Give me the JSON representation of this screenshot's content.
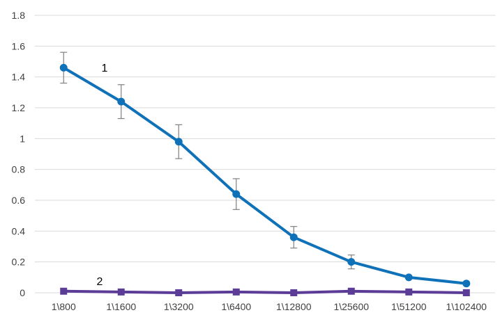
{
  "chart_data": {
    "type": "line",
    "title": "",
    "xlabel": "",
    "ylabel": "",
    "categories": [
      "1\\800",
      "1\\1600",
      "1\\3200",
      "1\\6400",
      "1\\12800",
      "1\\25600",
      "1\\51200",
      "1\\102400"
    ],
    "ylim": [
      0,
      1.8
    ],
    "yticks": [
      "0",
      "0.2",
      "0.4",
      "0.6",
      "0.8",
      "1",
      "1.2",
      "1.4",
      "1.6",
      "1.8"
    ],
    "grid": true,
    "legend": "none",
    "series": [
      {
        "label": "1",
        "color": "#0f71b8",
        "marker": "circle",
        "values": [
          1.46,
          1.24,
          0.98,
          0.64,
          0.36,
          0.2,
          0.1,
          0.06
        ],
        "error": [
          0.1,
          0.11,
          0.11,
          0.1,
          0.07,
          0.045,
          0,
          0
        ]
      },
      {
        "label": "2",
        "color": "#5b3c96",
        "marker": "square",
        "values": [
          0.01,
          0.005,
          0.0,
          0.005,
          0.0,
          0.01,
          0.005,
          0.0
        ]
      }
    ]
  }
}
